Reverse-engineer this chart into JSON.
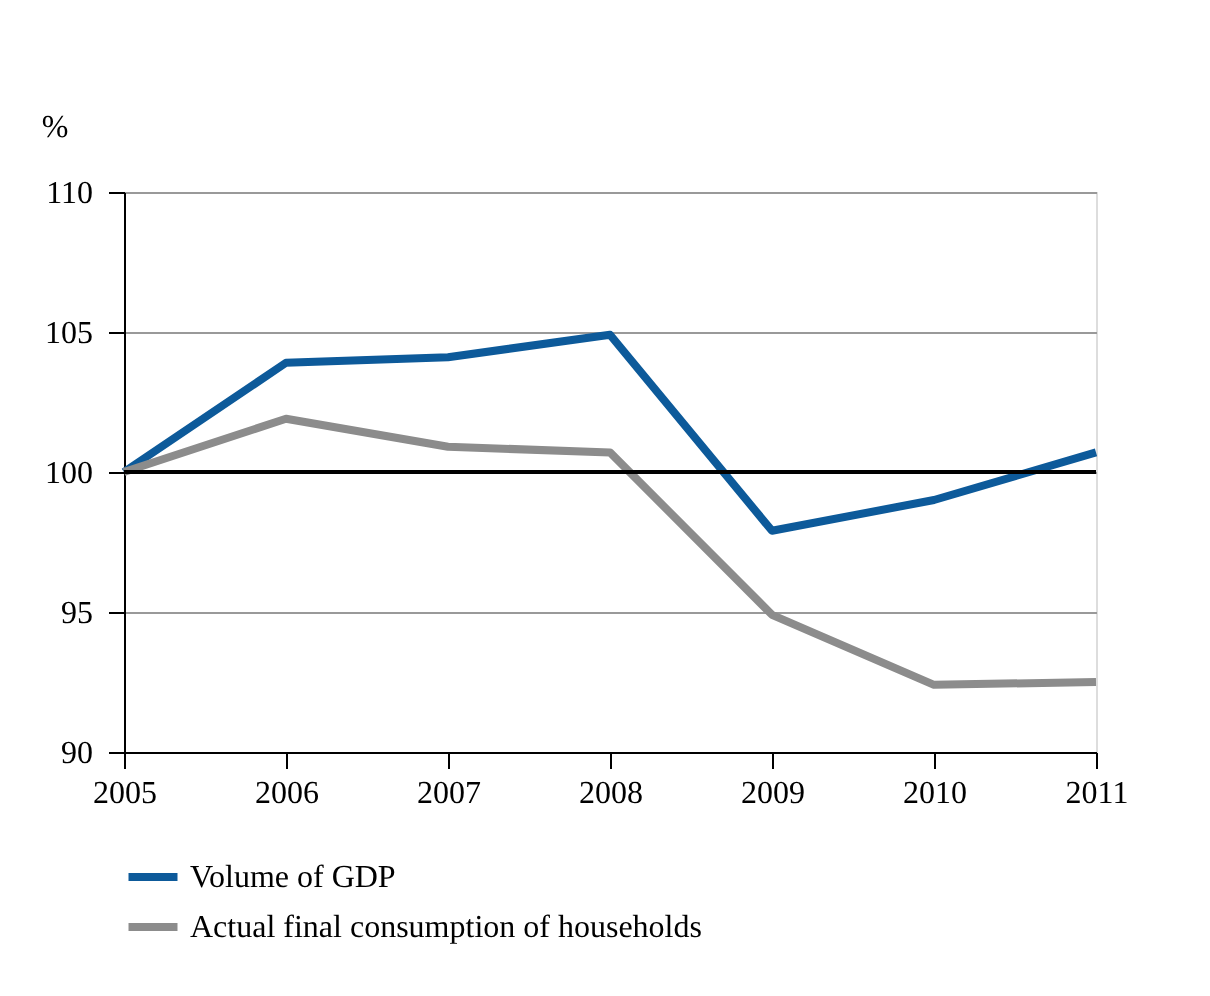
{
  "chart_data": {
    "type": "line",
    "ylabel": "%",
    "x": [
      2005,
      2006,
      2007,
      2008,
      2009,
      2010,
      2011
    ],
    "series": [
      {
        "name": "Volume of GDP",
        "color": "#0d5a9a",
        "values": [
          100,
          103.9,
          104.1,
          104.9,
          97.9,
          99.0,
          100.7
        ]
      },
      {
        "name": "Actual final consumption of households",
        "color": "#8c8c8c",
        "values": [
          100,
          101.9,
          100.9,
          100.7,
          94.9,
          92.4,
          92.5
        ]
      }
    ],
    "xlim": [
      2005,
      2011
    ],
    "xticks": [
      2005,
      2006,
      2007,
      2008,
      2009,
      2010,
      2011
    ],
    "ylim": [
      90,
      110
    ],
    "yticks": [
      90,
      95,
      100,
      105,
      110
    ],
    "ref_lines": [
      {
        "axis": "y",
        "value": 100,
        "color": "#000000"
      }
    ],
    "grid": "y",
    "legend": "bottom",
    "marker": "none",
    "line_style": "solid"
  }
}
